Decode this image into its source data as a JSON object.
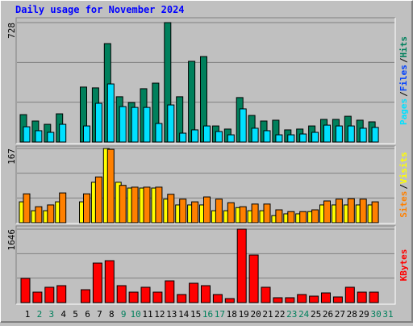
{
  "chart_data": [
    {
      "type": "bar",
      "title": "Daily usage for November 2024",
      "legend_separator": "/",
      "ylim": [
        0,
        728
      ],
      "yticks": [
        728
      ],
      "series": [
        {
          "name": "Hits",
          "color": "#00805c",
          "values": [
            167,
            128,
            108,
            172,
            0,
            335,
            330,
            600,
            276,
            241,
            325,
            359,
            728,
            276,
            492,
            521,
            98,
            79,
            271,
            162,
            128,
            133,
            74,
            79,
            98,
            138,
            138,
            157,
            133,
            123,
            null
          ]
        },
        {
          "name": "Files",
          "color": "#0040ff",
          "values": [
            40,
            20,
            20,
            30,
            0,
            30,
            150,
            160,
            80,
            60,
            70,
            40,
            80,
            20,
            30,
            40,
            20,
            15,
            100,
            40,
            25,
            15,
            15,
            20,
            20,
            40,
            40,
            40,
            30,
            30,
            null
          ]
        },
        {
          "name": "Pages",
          "color": "#00e0ff",
          "values": [
            93,
            69,
            59,
            108,
            0,
            98,
            236,
            354,
            216,
            211,
            211,
            113,
            226,
            54,
            74,
            98,
            64,
            44,
            202,
            84,
            69,
            44,
            44,
            49,
            59,
            103,
            98,
            98,
            84,
            89,
            null
          ]
        }
      ]
    },
    {
      "type": "bar",
      "ylim": [
        0,
        167
      ],
      "yticks": [
        167
      ],
      "series": [
        {
          "name": "Visits",
          "color": "#ffff00",
          "values": [
            47,
            27,
            27,
            47,
            0,
            47,
            91,
            167,
            91,
            78,
            78,
            78,
            53,
            40,
            40,
            40,
            27,
            27,
            34,
            27,
            27,
            16,
            20,
            20,
            25,
            40,
            40,
            40,
            40,
            40,
            null
          ]
        },
        {
          "name": "Sites",
          "color": "#ff8000",
          "values": [
            65,
            36,
            40,
            67,
            0,
            65,
            103,
            165,
            84,
            80,
            80,
            80,
            64,
            53,
            47,
            58,
            53,
            45,
            36,
            42,
            42,
            29,
            25,
            25,
            29,
            49,
            53,
            54,
            53,
            47,
            null
          ]
        }
      ]
    },
    {
      "type": "bar",
      "ylim": [
        0,
        1646
      ],
      "yticks": [
        1646
      ],
      "categories": [
        "1",
        "2",
        "3",
        "4",
        "5",
        "6",
        "7",
        "8",
        "9",
        "10",
        "11",
        "12",
        "13",
        "14",
        "15",
        "16",
        "17",
        "18",
        "19",
        "20",
        "21",
        "22",
        "23",
        "24",
        "25",
        "26",
        "27",
        "28",
        "29",
        "30",
        "31"
      ],
      "label_colors": [
        "#000",
        "#00805c",
        "#00805c",
        "#000",
        "#000",
        "#000",
        "#000",
        "#000",
        "#00805c",
        "#00805c",
        "#000",
        "#000",
        "#000",
        "#000",
        "#000",
        "#00805c",
        "#00805c",
        "#000",
        "#000",
        "#000",
        "#000",
        "#000",
        "#00805c",
        "#00805c",
        "#000",
        "#000",
        "#000",
        "#000",
        "#000",
        "#00805c",
        "#00805c"
      ],
      "series": [
        {
          "name": "KBytes",
          "color": "#ff0000",
          "values": [
            543,
            235,
            344,
            380,
            0,
            289,
            886,
            940,
            380,
            235,
            344,
            235,
            488,
            181,
            434,
            380,
            181,
            90,
            1646,
            1067,
            344,
            109,
            109,
            181,
            145,
            217,
            127,
            344,
            235,
            235,
            null
          ]
        }
      ]
    }
  ]
}
